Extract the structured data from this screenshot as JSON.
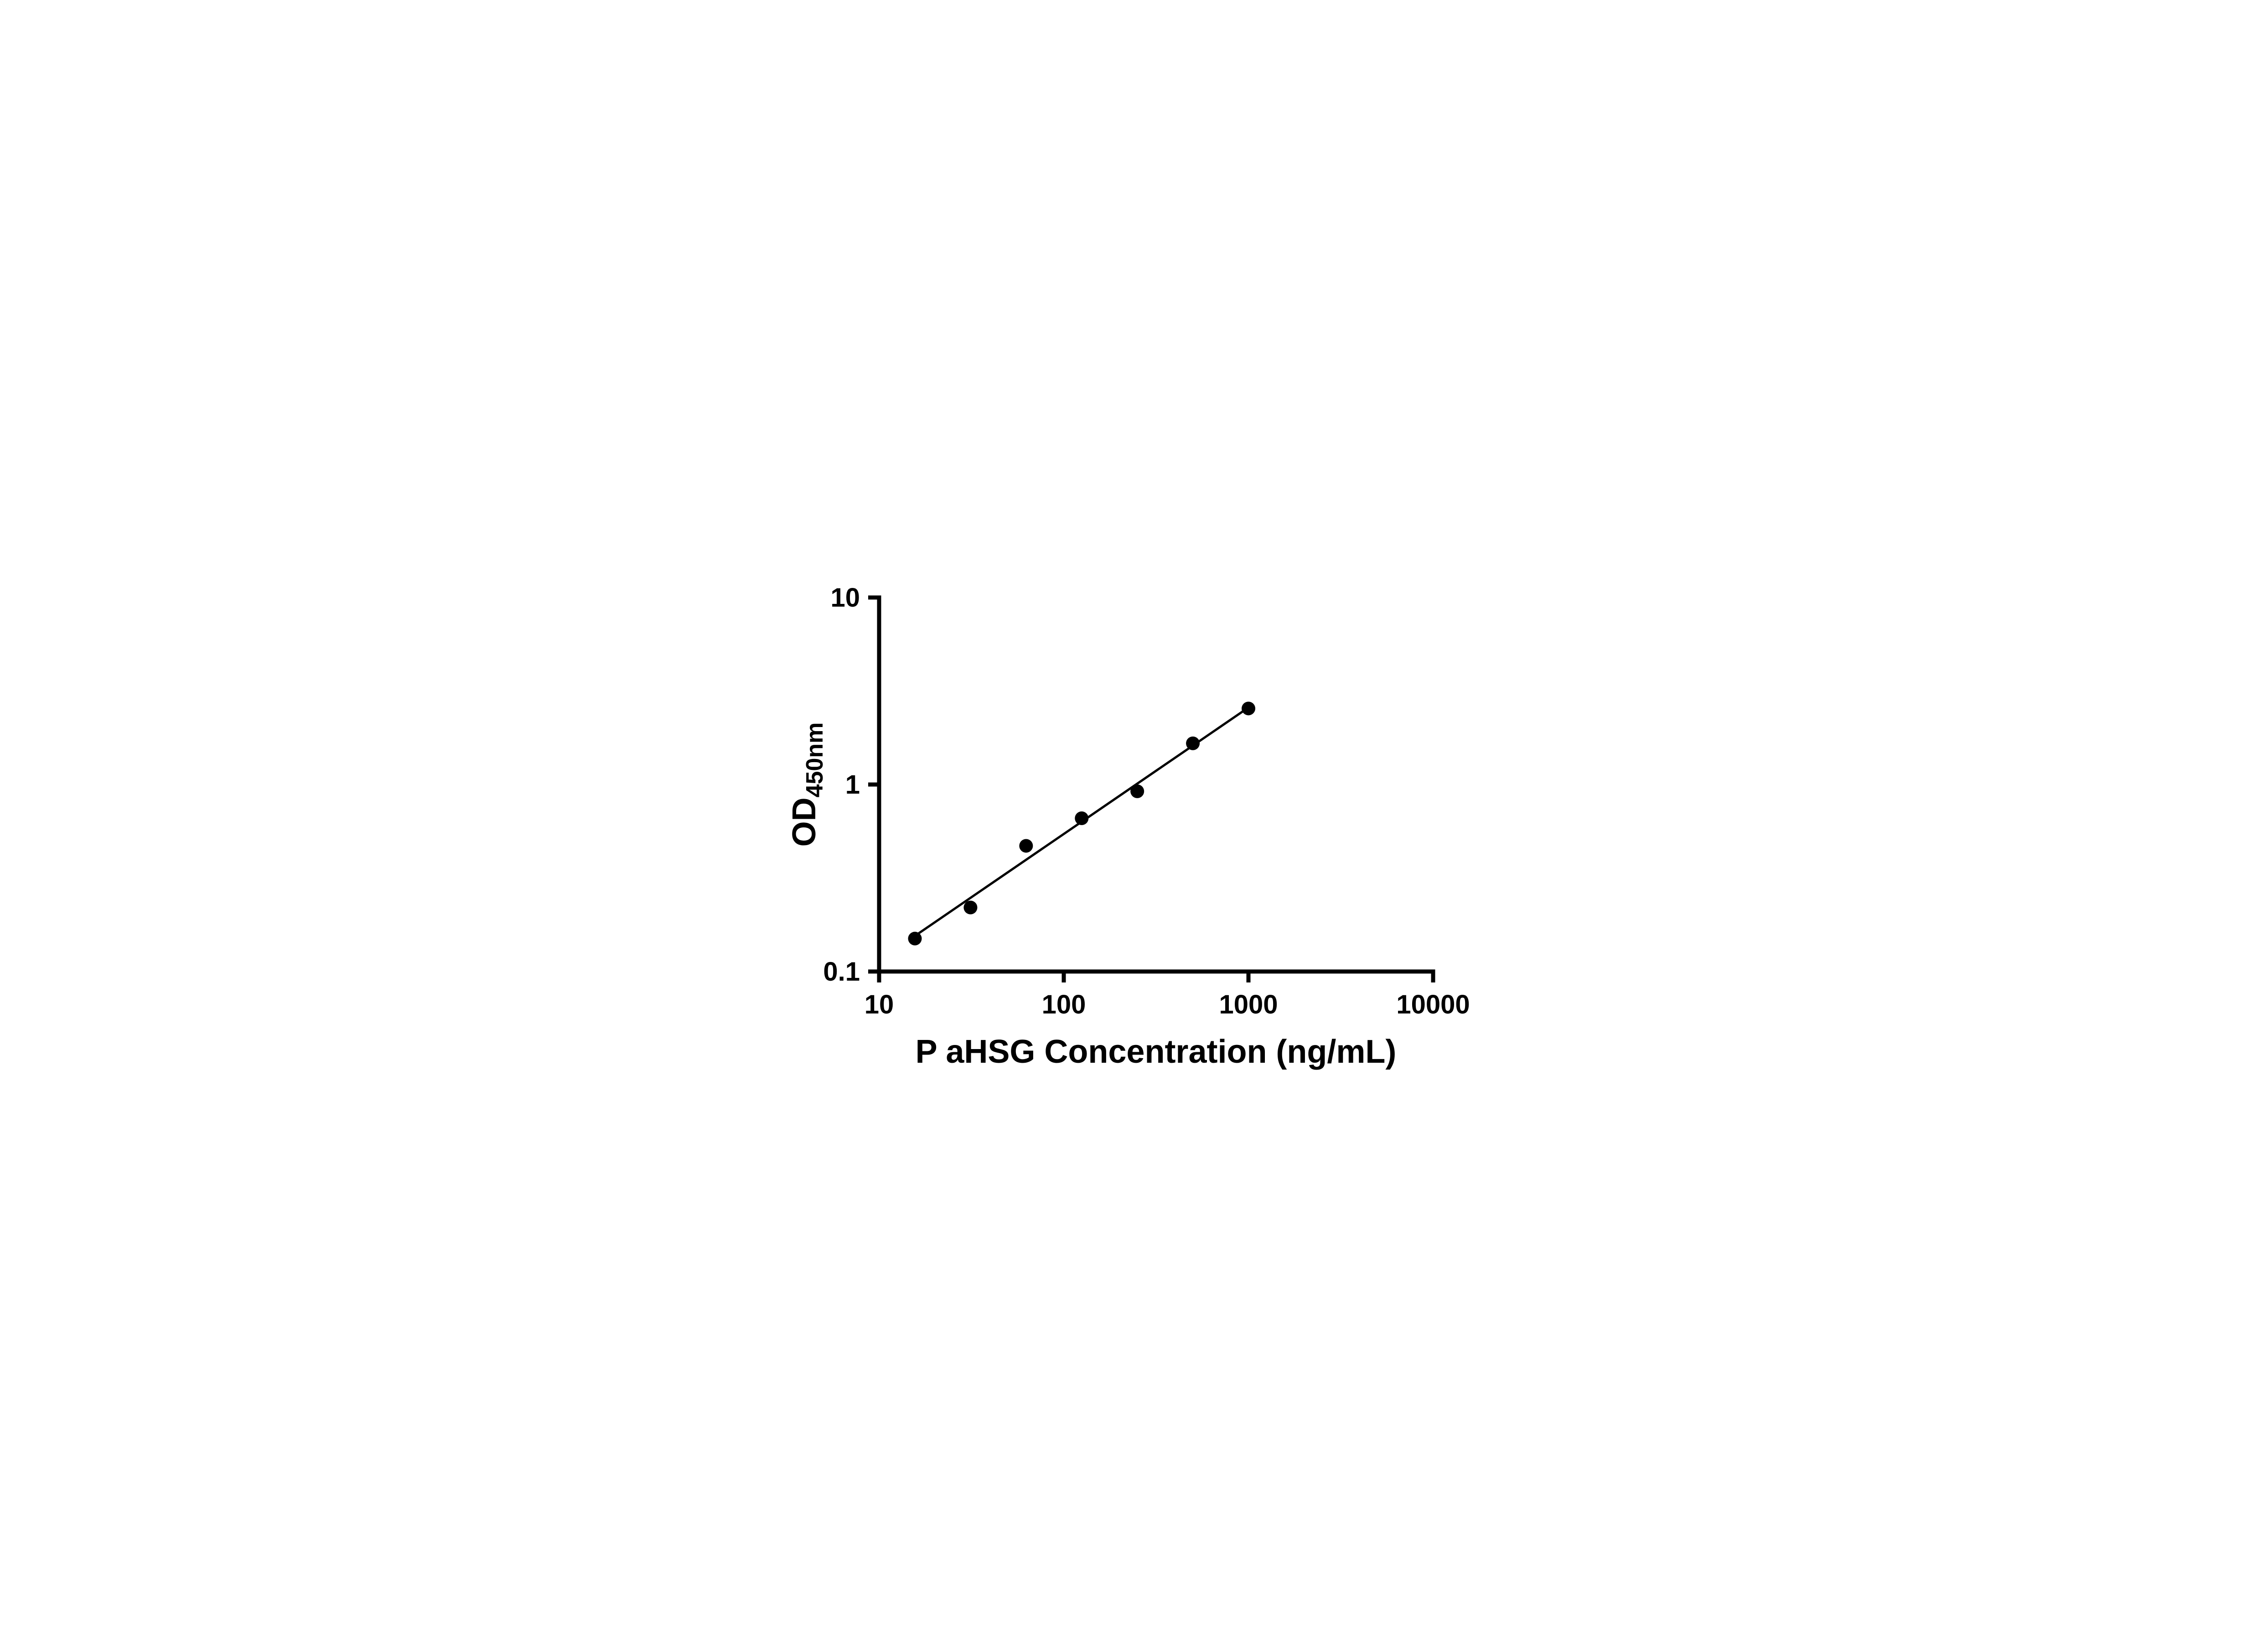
{
  "page": {
    "background": "#ffffff"
  },
  "chart_data": {
    "type": "scatter",
    "title": "",
    "xlabel": "P aHSG Concentration (ng/mL)",
    "ylabel": "OD450nm",
    "ylabel_main": "OD",
    "ylabel_sub": "450nm",
    "x_scale": "log10",
    "y_scale": "log10",
    "xlim": [
      10,
      10000
    ],
    "ylim": [
      0.1,
      10
    ],
    "x_ticks": [
      {
        "value": 10,
        "label": "10"
      },
      {
        "value": 100,
        "label": "100"
      },
      {
        "value": 1000,
        "label": "1000"
      },
      {
        "value": 10000,
        "label": "10000"
      }
    ],
    "y_ticks": [
      {
        "value": 0.1,
        "label": "0.1"
      },
      {
        "value": 1,
        "label": "1"
      },
      {
        "value": 10,
        "label": "10"
      }
    ],
    "grid": false,
    "legend": false,
    "axis_color": "#000000",
    "series": [
      {
        "name": "standard-curve-points",
        "marker": "circle-filled",
        "marker_color": "#000000",
        "marker_radius": 15,
        "points": [
          {
            "x": 15.625,
            "y": 0.15
          },
          {
            "x": 31.25,
            "y": 0.22
          },
          {
            "x": 62.5,
            "y": 0.47
          },
          {
            "x": 125,
            "y": 0.66
          },
          {
            "x": 250,
            "y": 0.92
          },
          {
            "x": 500,
            "y": 1.66
          },
          {
            "x": 1000,
            "y": 2.55
          }
        ]
      }
    ],
    "trendline": {
      "x_start": 15.625,
      "y_start": 0.155,
      "x_end": 1000,
      "y_end": 2.58,
      "color": "#000000",
      "width": 5
    }
  }
}
